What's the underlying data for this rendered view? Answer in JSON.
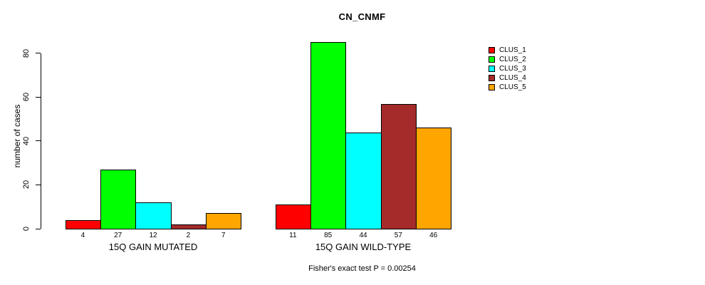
{
  "chart_data": {
    "type": "bar",
    "title": "CN_CNMF",
    "ylabel": "number of cases",
    "xlabel": "",
    "categories": [
      "15Q GAIN MUTATED",
      "15Q GAIN WILD-TYPE"
    ],
    "series": [
      {
        "name": "CLUS_1",
        "color": "#FF0000",
        "values": [
          4,
          11
        ]
      },
      {
        "name": "CLUS_2",
        "color": "#00FF00",
        "values": [
          27,
          85
        ]
      },
      {
        "name": "CLUS_3",
        "color": "#00FFFF",
        "values": [
          12,
          44
        ]
      },
      {
        "name": "CLUS_4",
        "color": "#A52A2A",
        "values": [
          2,
          57
        ]
      },
      {
        "name": "CLUS_5",
        "color": "#FFA500",
        "values": [
          7,
          46
        ]
      }
    ],
    "yticks": [
      0,
      20,
      40,
      60,
      80
    ],
    "ylim": [
      0,
      85
    ],
    "grid": false,
    "bar_value_labels_shown": true,
    "legend_position": "top-right"
  },
  "footer": {
    "text": "Fisher's exact test P = 0.00254"
  }
}
